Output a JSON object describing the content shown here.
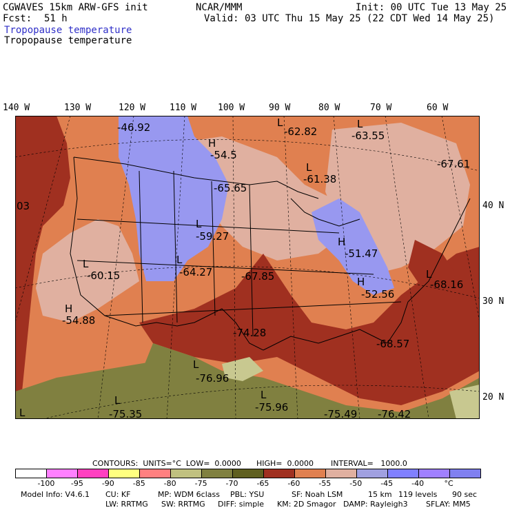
{
  "header": {
    "model": "CGWAVES 15km ARW-GFS init",
    "fcst_label": "Fcst:",
    "fcst_value": "51 h",
    "org": "NCAR/MMM",
    "init": "Init: 00 UTC Tue 13 May 25",
    "valid": "Valid: 03 UTC Thu 15 May 25 (22 CDT Wed 14 May 25)",
    "field_blue": "Tropopause temperature",
    "field_black": "Tropopause temperature"
  },
  "axes": {
    "longitudes": [
      "140 W",
      "130 W",
      "120 W",
      "110 W",
      "100 W",
      "90 W",
      "80 W",
      "70 W",
      "60 W"
    ],
    "latitudes": [
      "40 N",
      "30 N",
      "20 N"
    ]
  },
  "map_labels": [
    {
      "text": "-46.92"
    },
    {
      "text": "H"
    },
    {
      "text": "-54.5"
    },
    {
      "text": "L"
    },
    {
      "text": "-62.82"
    },
    {
      "text": "L"
    },
    {
      "text": "-63.55"
    },
    {
      "text": "-65.65"
    },
    {
      "text": "L"
    },
    {
      "text": "-61.38"
    },
    {
      "text": "-67.61"
    },
    {
      "text": "03"
    },
    {
      "text": "L"
    },
    {
      "text": "-59.27"
    },
    {
      "text": "L"
    },
    {
      "text": "-60.15"
    },
    {
      "text": "L"
    },
    {
      "text": "-64.27"
    },
    {
      "text": "-67.85"
    },
    {
      "text": "H"
    },
    {
      "text": "-51.47"
    },
    {
      "text": "H"
    },
    {
      "text": "-52.56"
    },
    {
      "text": "L"
    },
    {
      "text": "-68.16"
    },
    {
      "text": "H"
    },
    {
      "text": "-54.88"
    },
    {
      "text": "-74.28"
    },
    {
      "text": "-68.57"
    },
    {
      "text": "L"
    },
    {
      "text": "-76.96"
    },
    {
      "text": "L"
    },
    {
      "text": "-75.35"
    },
    {
      "text": "L"
    },
    {
      "text": "-75.96"
    },
    {
      "text": "-75.49"
    },
    {
      "text": "-76.42"
    },
    {
      "text": "L"
    }
  ],
  "contours": {
    "units_label": "CONTOURS:  UNITS=°C  LOW=  0.0000",
    "high_label": "HIGH=  0.0000",
    "interval_label": "INTERVAL=   1000.0"
  },
  "legend": {
    "colors": [
      "#ffffff",
      "#ff80ff",
      "#ff40c0",
      "#ffff80",
      "#ff8080",
      "#c0c080",
      "#808040",
      "#606020",
      "#a03020",
      "#e08050",
      "#e0b0a0",
      "#a0a0e0",
      "#8080ff",
      "#a080ff",
      "#8080f0"
    ],
    "ticks": [
      "-100",
      "-95",
      "-90",
      "-85",
      "-80",
      "-75",
      "-70",
      "-65",
      "-60",
      "-55",
      "-50",
      "-45",
      "-40",
      "°C"
    ]
  },
  "footer": {
    "line1_model": "Model Info: V4.6.1",
    "line1_cu": "CU: KF",
    "line1_mp": "MP: WDM 6class",
    "line1_pbl": "PBL: YSU",
    "line1_sf": "SF: Noah LSM",
    "line1_res": "15 km",
    "line1_levels": "119 levels",
    "line1_sec": "90 sec",
    "line2_lw": "LW: RRTMG",
    "line2_sw": "SW: RRTMG",
    "line2_diff": "DIFF: simple",
    "line2_km": "KM: 2D Smagor",
    "line2_damp": "DAMP: Rayleigh3",
    "line2_sflay": "SFLAY: MM5"
  },
  "colors": {
    "violet": "#9898f0",
    "pink": "#e0b0a0",
    "orange": "#e08050",
    "red": "#a03020",
    "olive": "#808040",
    "khaki": "#c8c890"
  }
}
